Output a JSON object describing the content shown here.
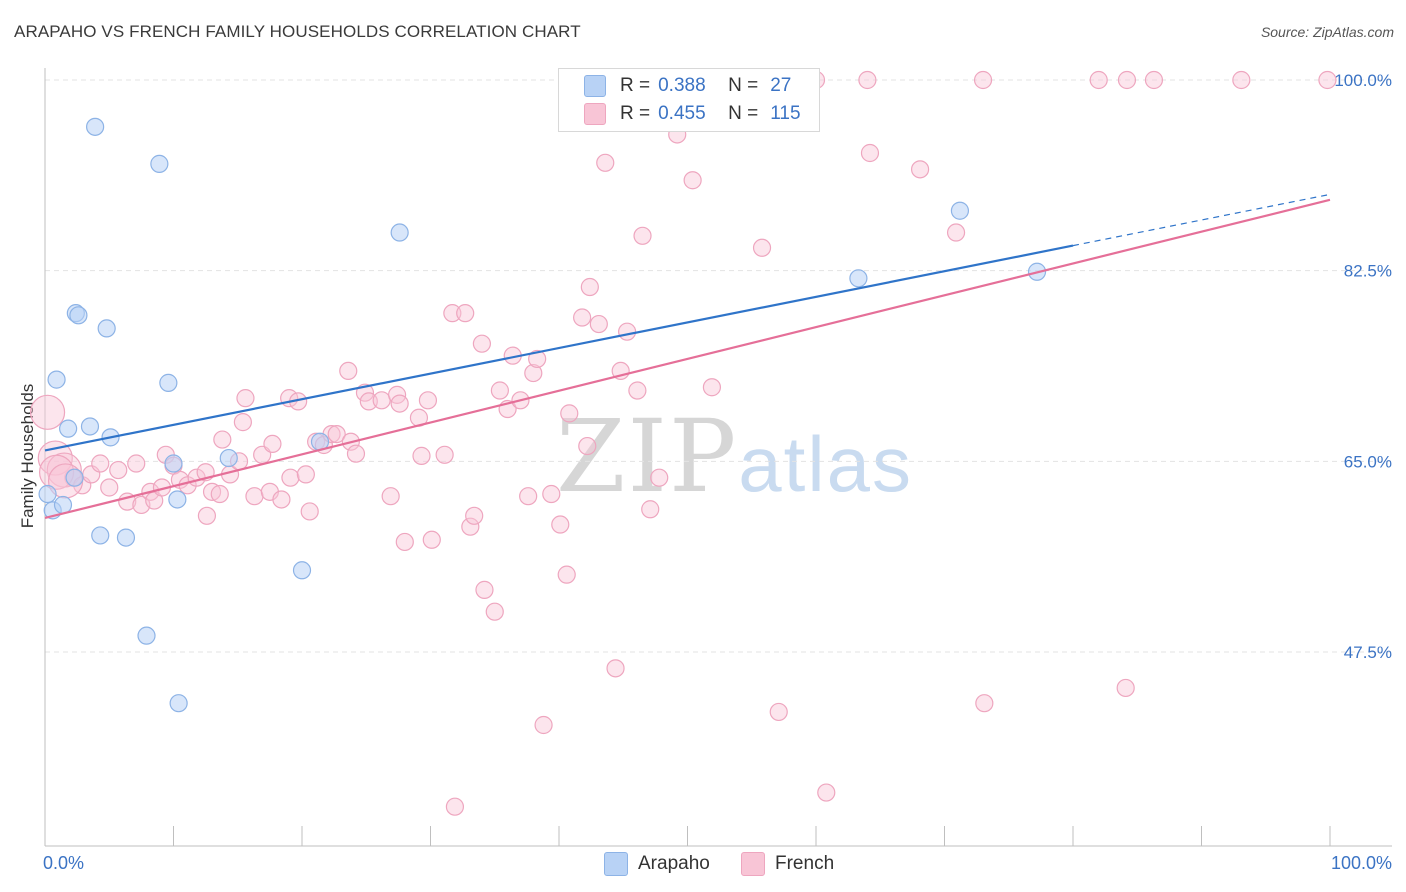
{
  "header": {
    "title": "ARAPAHO VS FRENCH FAMILY HOUSEHOLDS CORRELATION CHART",
    "source": "Source: ZipAtlas.com"
  },
  "watermark": {
    "zip": "ZIP",
    "atlas": "atlas"
  },
  "legend": {
    "rows": [
      {
        "r_label": "R =",
        "r_value": "0.388",
        "n_label": "N =",
        "n_value": "27"
      },
      {
        "r_label": "R =",
        "r_value": "0.455",
        "n_label": "N =",
        "n_value": "115"
      }
    ]
  },
  "bottom_legend": {
    "series1": "Arapaho",
    "series2": "French"
  },
  "colors": {
    "arapaho_fill": "#b8d2f5",
    "arapaho_stroke": "#8db3e6",
    "arapaho_line": "#2f74c9",
    "french_fill": "#f8c5d6",
    "french_stroke": "#eea6bf",
    "french_line": "#e56f98",
    "tick_text": "#3b73c4",
    "grid": "#e3e3e3"
  },
  "chart_data": {
    "type": "scatter",
    "title": "ARAPAHO VS FRENCH FAMILY HOUSEHOLDS CORRELATION CHART",
    "xlabel": "",
    "ylabel": "Family Households",
    "xlim": [
      0,
      100
    ],
    "ylim": [
      30.0,
      102.0
    ],
    "x_tick_labels": [
      "0.0%",
      "100.0%"
    ],
    "y_ticks": [
      47.5,
      65.0,
      82.5,
      100.0
    ],
    "y_tick_labels": [
      "47.5%",
      "65.0%",
      "82.5%",
      "100.0%"
    ],
    "grid": true,
    "legend_position": "top-center",
    "series": [
      {
        "name": "Arapaho",
        "r": 0.388,
        "n": 27,
        "trend": {
          "x": [
            0,
            80
          ],
          "y": [
            66.0,
            84.8
          ],
          "dashed_extension_to": [
            100,
            89.5
          ]
        },
        "points": [
          [
            0.2,
            62.0
          ],
          [
            0.6,
            60.5
          ],
          [
            1.4,
            61.0
          ],
          [
            0.9,
            72.5
          ],
          [
            1.8,
            68.0
          ],
          [
            2.3,
            63.5
          ],
          [
            3.5,
            68.2
          ],
          [
            2.4,
            78.6
          ],
          [
            2.6,
            78.4
          ],
          [
            4.8,
            77.2
          ],
          [
            5.1,
            67.2
          ],
          [
            4.3,
            58.2
          ],
          [
            6.3,
            58.0
          ],
          [
            3.9,
            95.7
          ],
          [
            8.9,
            92.3
          ],
          [
            9.6,
            72.2
          ],
          [
            10.0,
            64.8
          ],
          [
            10.3,
            61.5
          ],
          [
            7.9,
            49.0
          ],
          [
            10.4,
            42.8
          ],
          [
            14.3,
            65.3
          ],
          [
            20.0,
            55.0
          ],
          [
            21.4,
            66.8
          ],
          [
            27.6,
            86.0
          ],
          [
            63.3,
            81.8
          ],
          [
            71.2,
            88.0
          ],
          [
            77.2,
            82.4
          ]
        ]
      },
      {
        "name": "French",
        "r": 0.455,
        "n": 115,
        "trend": {
          "x": [
            0,
            100
          ],
          "y": [
            59.8,
            89.0
          ]
        },
        "points": [
          [
            0.2,
            69.5
          ],
          [
            0.8,
            65.3
          ],
          [
            1.5,
            64.2
          ],
          [
            2.2,
            63.5
          ],
          [
            2.9,
            62.8
          ],
          [
            3.6,
            63.8
          ],
          [
            4.3,
            64.8
          ],
          [
            5.0,
            62.6
          ],
          [
            5.7,
            64.2
          ],
          [
            6.4,
            61.3
          ],
          [
            7.1,
            64.8
          ],
          [
            7.5,
            61.0
          ],
          [
            8.2,
            62.2
          ],
          [
            8.5,
            61.4
          ],
          [
            9.1,
            62.6
          ],
          [
            9.4,
            65.6
          ],
          [
            10.0,
            64.6
          ],
          [
            10.5,
            63.3
          ],
          [
            11.1,
            62.8
          ],
          [
            11.8,
            63.5
          ],
          [
            12.5,
            64.0
          ],
          [
            12.6,
            60.0
          ],
          [
            13.0,
            62.2
          ],
          [
            13.6,
            62.0
          ],
          [
            13.8,
            67.0
          ],
          [
            14.4,
            63.8
          ],
          [
            15.1,
            65.0
          ],
          [
            15.4,
            68.6
          ],
          [
            15.6,
            70.8
          ],
          [
            16.3,
            61.8
          ],
          [
            16.9,
            65.6
          ],
          [
            17.5,
            62.2
          ],
          [
            17.7,
            66.6
          ],
          [
            18.4,
            61.5
          ],
          [
            19.0,
            70.8
          ],
          [
            19.1,
            63.5
          ],
          [
            19.7,
            70.5
          ],
          [
            20.3,
            63.8
          ],
          [
            20.6,
            60.4
          ],
          [
            21.1,
            66.8
          ],
          [
            21.7,
            66.5
          ],
          [
            22.3,
            67.5
          ],
          [
            22.7,
            67.5
          ],
          [
            23.6,
            73.3
          ],
          [
            23.8,
            66.8
          ],
          [
            24.2,
            65.7
          ],
          [
            24.9,
            71.3
          ],
          [
            25.2,
            70.5
          ],
          [
            26.2,
            70.6
          ],
          [
            26.9,
            61.8
          ],
          [
            27.4,
            71.1
          ],
          [
            27.6,
            70.3
          ],
          [
            28.0,
            57.6
          ],
          [
            29.1,
            69.0
          ],
          [
            29.3,
            65.5
          ],
          [
            29.8,
            70.6
          ],
          [
            30.1,
            57.8
          ],
          [
            31.1,
            65.6
          ],
          [
            31.7,
            78.6
          ],
          [
            31.9,
            33.3
          ],
          [
            32.7,
            78.6
          ],
          [
            33.1,
            59.0
          ],
          [
            33.4,
            60.0
          ],
          [
            34.0,
            75.8
          ],
          [
            34.2,
            53.2
          ],
          [
            35.0,
            51.2
          ],
          [
            35.4,
            71.5
          ],
          [
            36.0,
            69.8
          ],
          [
            36.4,
            74.7
          ],
          [
            37.0,
            70.6
          ],
          [
            37.6,
            61.8
          ],
          [
            38.0,
            73.1
          ],
          [
            38.3,
            74.4
          ],
          [
            38.8,
            40.8
          ],
          [
            39.4,
            62.0
          ],
          [
            40.1,
            59.2
          ],
          [
            40.6,
            54.6
          ],
          [
            40.8,
            69.4
          ],
          [
            41.8,
            78.2
          ],
          [
            42.2,
            66.4
          ],
          [
            42.4,
            81.0
          ],
          [
            43.1,
            77.6
          ],
          [
            43.6,
            92.4
          ],
          [
            44.4,
            46.0
          ],
          [
            44.8,
            73.3
          ],
          [
            45.3,
            76.9
          ],
          [
            46.1,
            71.5
          ],
          [
            46.5,
            85.7
          ],
          [
            47.1,
            60.6
          ],
          [
            47.8,
            63.5
          ],
          [
            49.2,
            95.0
          ],
          [
            50.4,
            90.8
          ],
          [
            51.5,
            100.0
          ],
          [
            51.9,
            71.8
          ],
          [
            55.8,
            100.0
          ],
          [
            55.8,
            84.6
          ],
          [
            57.1,
            42.0
          ],
          [
            60.0,
            100.0
          ],
          [
            60.8,
            34.6
          ],
          [
            64.0,
            100.0
          ],
          [
            64.2,
            93.3
          ],
          [
            68.1,
            91.8
          ],
          [
            70.9,
            86.0
          ],
          [
            73.0,
            100.0
          ],
          [
            73.1,
            42.8
          ],
          [
            82.0,
            100.0
          ],
          [
            84.1,
            44.2
          ],
          [
            84.2,
            100.0
          ],
          [
            86.3,
            100.0
          ],
          [
            93.1,
            100.0
          ],
          [
            99.8,
            100.0
          ],
          [
            0.9,
            64.0
          ],
          [
            1.6,
            63.2
          ]
        ]
      }
    ]
  }
}
